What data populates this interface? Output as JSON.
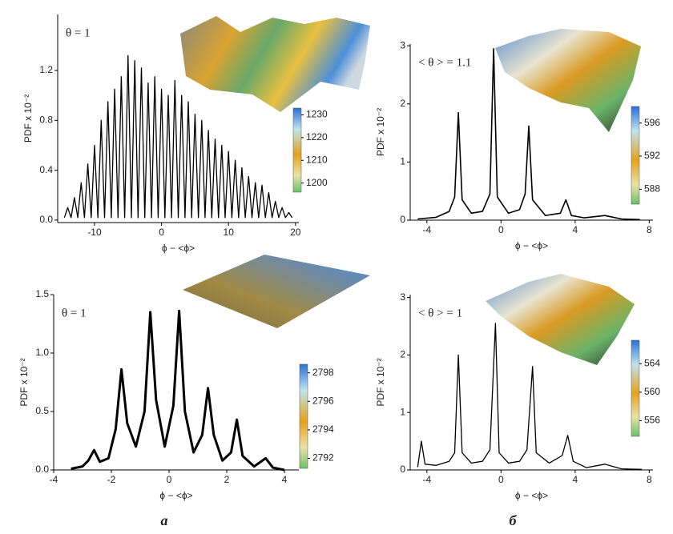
{
  "chart_data": [
    {
      "type": "line",
      "annotation": "θ = 1",
      "x_label": "ϕ − <ϕ>",
      "y_label": "PDF x 10⁻²",
      "color": "#000000",
      "stroke_width": 1.3,
      "x": [
        -14.5,
        -14,
        -13.5,
        -13,
        -12.5,
        -12,
        -11.5,
        -11,
        -10.5,
        -10,
        -9.5,
        -9,
        -8.5,
        -8,
        -7.5,
        -7,
        -6.5,
        -6,
        -5.5,
        -5,
        -4.5,
        -4,
        -3.5,
        -3,
        -2.5,
        -2,
        -1.5,
        -1,
        -0.5,
        0,
        0.5,
        1,
        1.5,
        2,
        2.5,
        3,
        3.5,
        4,
        4.5,
        5,
        5.5,
        6,
        6.5,
        7,
        7.5,
        8,
        8.5,
        9,
        9.5,
        10,
        10.5,
        11,
        11.5,
        12,
        12.5,
        13,
        13.5,
        14,
        14.5,
        15,
        15.5,
        16,
        16.5,
        17,
        17.5,
        18,
        18.5,
        19,
        19.5
      ],
      "values": [
        0.02,
        0.1,
        0.02,
        0.18,
        0.02,
        0.3,
        0.02,
        0.45,
        0.02,
        0.6,
        0.02,
        0.8,
        0.02,
        0.95,
        0.02,
        1.05,
        0.02,
        1.15,
        0.02,
        1.32,
        0.02,
        1.28,
        0.02,
        1.22,
        0.02,
        1.1,
        0.02,
        1.15,
        0.02,
        1.05,
        0.02,
        1.0,
        0.02,
        1.12,
        0.02,
        1.0,
        0.02,
        0.95,
        0.02,
        0.85,
        0.02,
        0.8,
        0.02,
        0.72,
        0.02,
        0.65,
        0.02,
        0.6,
        0.02,
        0.55,
        0.02,
        0.48,
        0.02,
        0.42,
        0.02,
        0.35,
        0.02,
        0.3,
        0.02,
        0.28,
        0.02,
        0.22,
        0.02,
        0.15,
        0.02,
        0.1,
        0.02,
        0.06,
        0.02
      ],
      "xlim": [
        -15.5,
        20.5
      ],
      "ylim": [
        -0.02,
        1.65
      ],
      "xticks": [
        -10,
        0,
        10,
        20
      ],
      "yticks": [
        {
          "value": 0,
          "label": "0.0"
        },
        0.4,
        0.8,
        1.2
      ],
      "colorbar": {
        "lim": [
          1196,
          1233
        ],
        "ticks": [
          1200,
          1210,
          1220,
          1230
        ]
      }
    },
    {
      "type": "line",
      "annotation": "θ = 1",
      "x_label": "ϕ − <ϕ>",
      "y_label": "PDF x 10⁻²",
      "color": "#000000",
      "stroke_width": 3,
      "x": [
        -3.4,
        -3.0,
        -2.8,
        -2.6,
        -2.4,
        -2.1,
        -1.85,
        -1.65,
        -1.45,
        -1.15,
        -0.85,
        -0.65,
        -0.45,
        -0.15,
        0.15,
        0.35,
        0.55,
        0.85,
        1.15,
        1.35,
        1.55,
        1.85,
        2.15,
        2.35,
        2.55,
        2.95,
        3.35,
        3.6,
        4.0
      ],
      "values": [
        0.01,
        0.03,
        0.08,
        0.17,
        0.07,
        0.1,
        0.35,
        0.86,
        0.4,
        0.2,
        0.5,
        1.35,
        0.6,
        0.2,
        0.55,
        1.36,
        0.5,
        0.15,
        0.3,
        0.7,
        0.3,
        0.08,
        0.15,
        0.43,
        0.12,
        0.03,
        0.1,
        0.02,
        0.0
      ],
      "xlim": [
        -4,
        4.5
      ],
      "ylim": [
        0,
        1.5
      ],
      "xticks": [
        -4,
        -2,
        0,
        2,
        4
      ],
      "yticks": [
        {
          "value": 0,
          "label": "0.0"
        },
        0.5,
        {
          "value": 1,
          "label": "1.0"
        },
        1.5
      ],
      "colorbar": {
        "lim": [
          2791.3,
          2798.6
        ],
        "ticks": [
          2792,
          2794,
          2796,
          2798
        ]
      }
    },
    {
      "type": "line",
      "annotation": "< θ > = 1.1",
      "x_label": "ϕ − <ϕ>",
      "y_label": "PDF x 10⁻²",
      "color": "#000000",
      "stroke_width": 1.6,
      "x": [
        -4.5,
        -3.5,
        -2.8,
        -2.5,
        -2.3,
        -2.1,
        -1.6,
        -1.0,
        -0.6,
        -0.4,
        -0.2,
        0.4,
        1.0,
        1.3,
        1.5,
        1.7,
        2.4,
        3.2,
        3.5,
        3.8,
        4.5,
        5.6,
        6.5,
        7.5
      ],
      "values": [
        0.02,
        0.05,
        0.15,
        0.4,
        1.85,
        0.35,
        0.12,
        0.15,
        0.45,
        2.95,
        0.4,
        0.12,
        0.18,
        0.45,
        1.62,
        0.35,
        0.08,
        0.12,
        0.35,
        0.08,
        0.04,
        0.08,
        0.02,
        0.01
      ],
      "xlim": [
        -4.9,
        8.2
      ],
      "ylim": [
        0,
        3.03
      ],
      "xticks": [
        -4,
        0,
        4,
        8
      ],
      "yticks": [
        0,
        1,
        2,
        3
      ],
      "colorbar": {
        "lim": [
          586.2,
          598.0
        ],
        "ticks": [
          588,
          592,
          596
        ]
      }
    },
    {
      "type": "line",
      "annotation": "< θ > = 1",
      "x_label": "ϕ − <ϕ>",
      "y_label": "PDF x 10⁻²",
      "color": "#000000",
      "stroke_width": 1.3,
      "x": [
        -4.5,
        -4.3,
        -4.1,
        -3.5,
        -2.8,
        -2.5,
        -2.3,
        -2.1,
        -1.6,
        -1.0,
        -0.6,
        -0.3,
        -0.1,
        0.4,
        1.0,
        1.4,
        1.7,
        1.9,
        2.6,
        3.3,
        3.6,
        3.9,
        4.6,
        5.6,
        6.5,
        7.6
      ],
      "values": [
        0.05,
        0.5,
        0.1,
        0.08,
        0.15,
        0.3,
        2.0,
        0.3,
        0.12,
        0.15,
        0.35,
        2.55,
        0.3,
        0.12,
        0.15,
        0.35,
        1.8,
        0.3,
        0.12,
        0.25,
        0.6,
        0.15,
        0.04,
        0.1,
        0.02,
        0.01
      ],
      "xlim": [
        -4.9,
        8.2
      ],
      "ylim": [
        0,
        3.05
      ],
      "xticks": [
        -4,
        0,
        4,
        8
      ],
      "yticks": [
        0,
        1,
        2,
        3
      ],
      "colorbar": {
        "lim": [
          553.8,
          567.3
        ],
        "ticks": [
          556,
          560,
          564
        ]
      }
    }
  ],
  "captions": [
    "a",
    "б"
  ]
}
